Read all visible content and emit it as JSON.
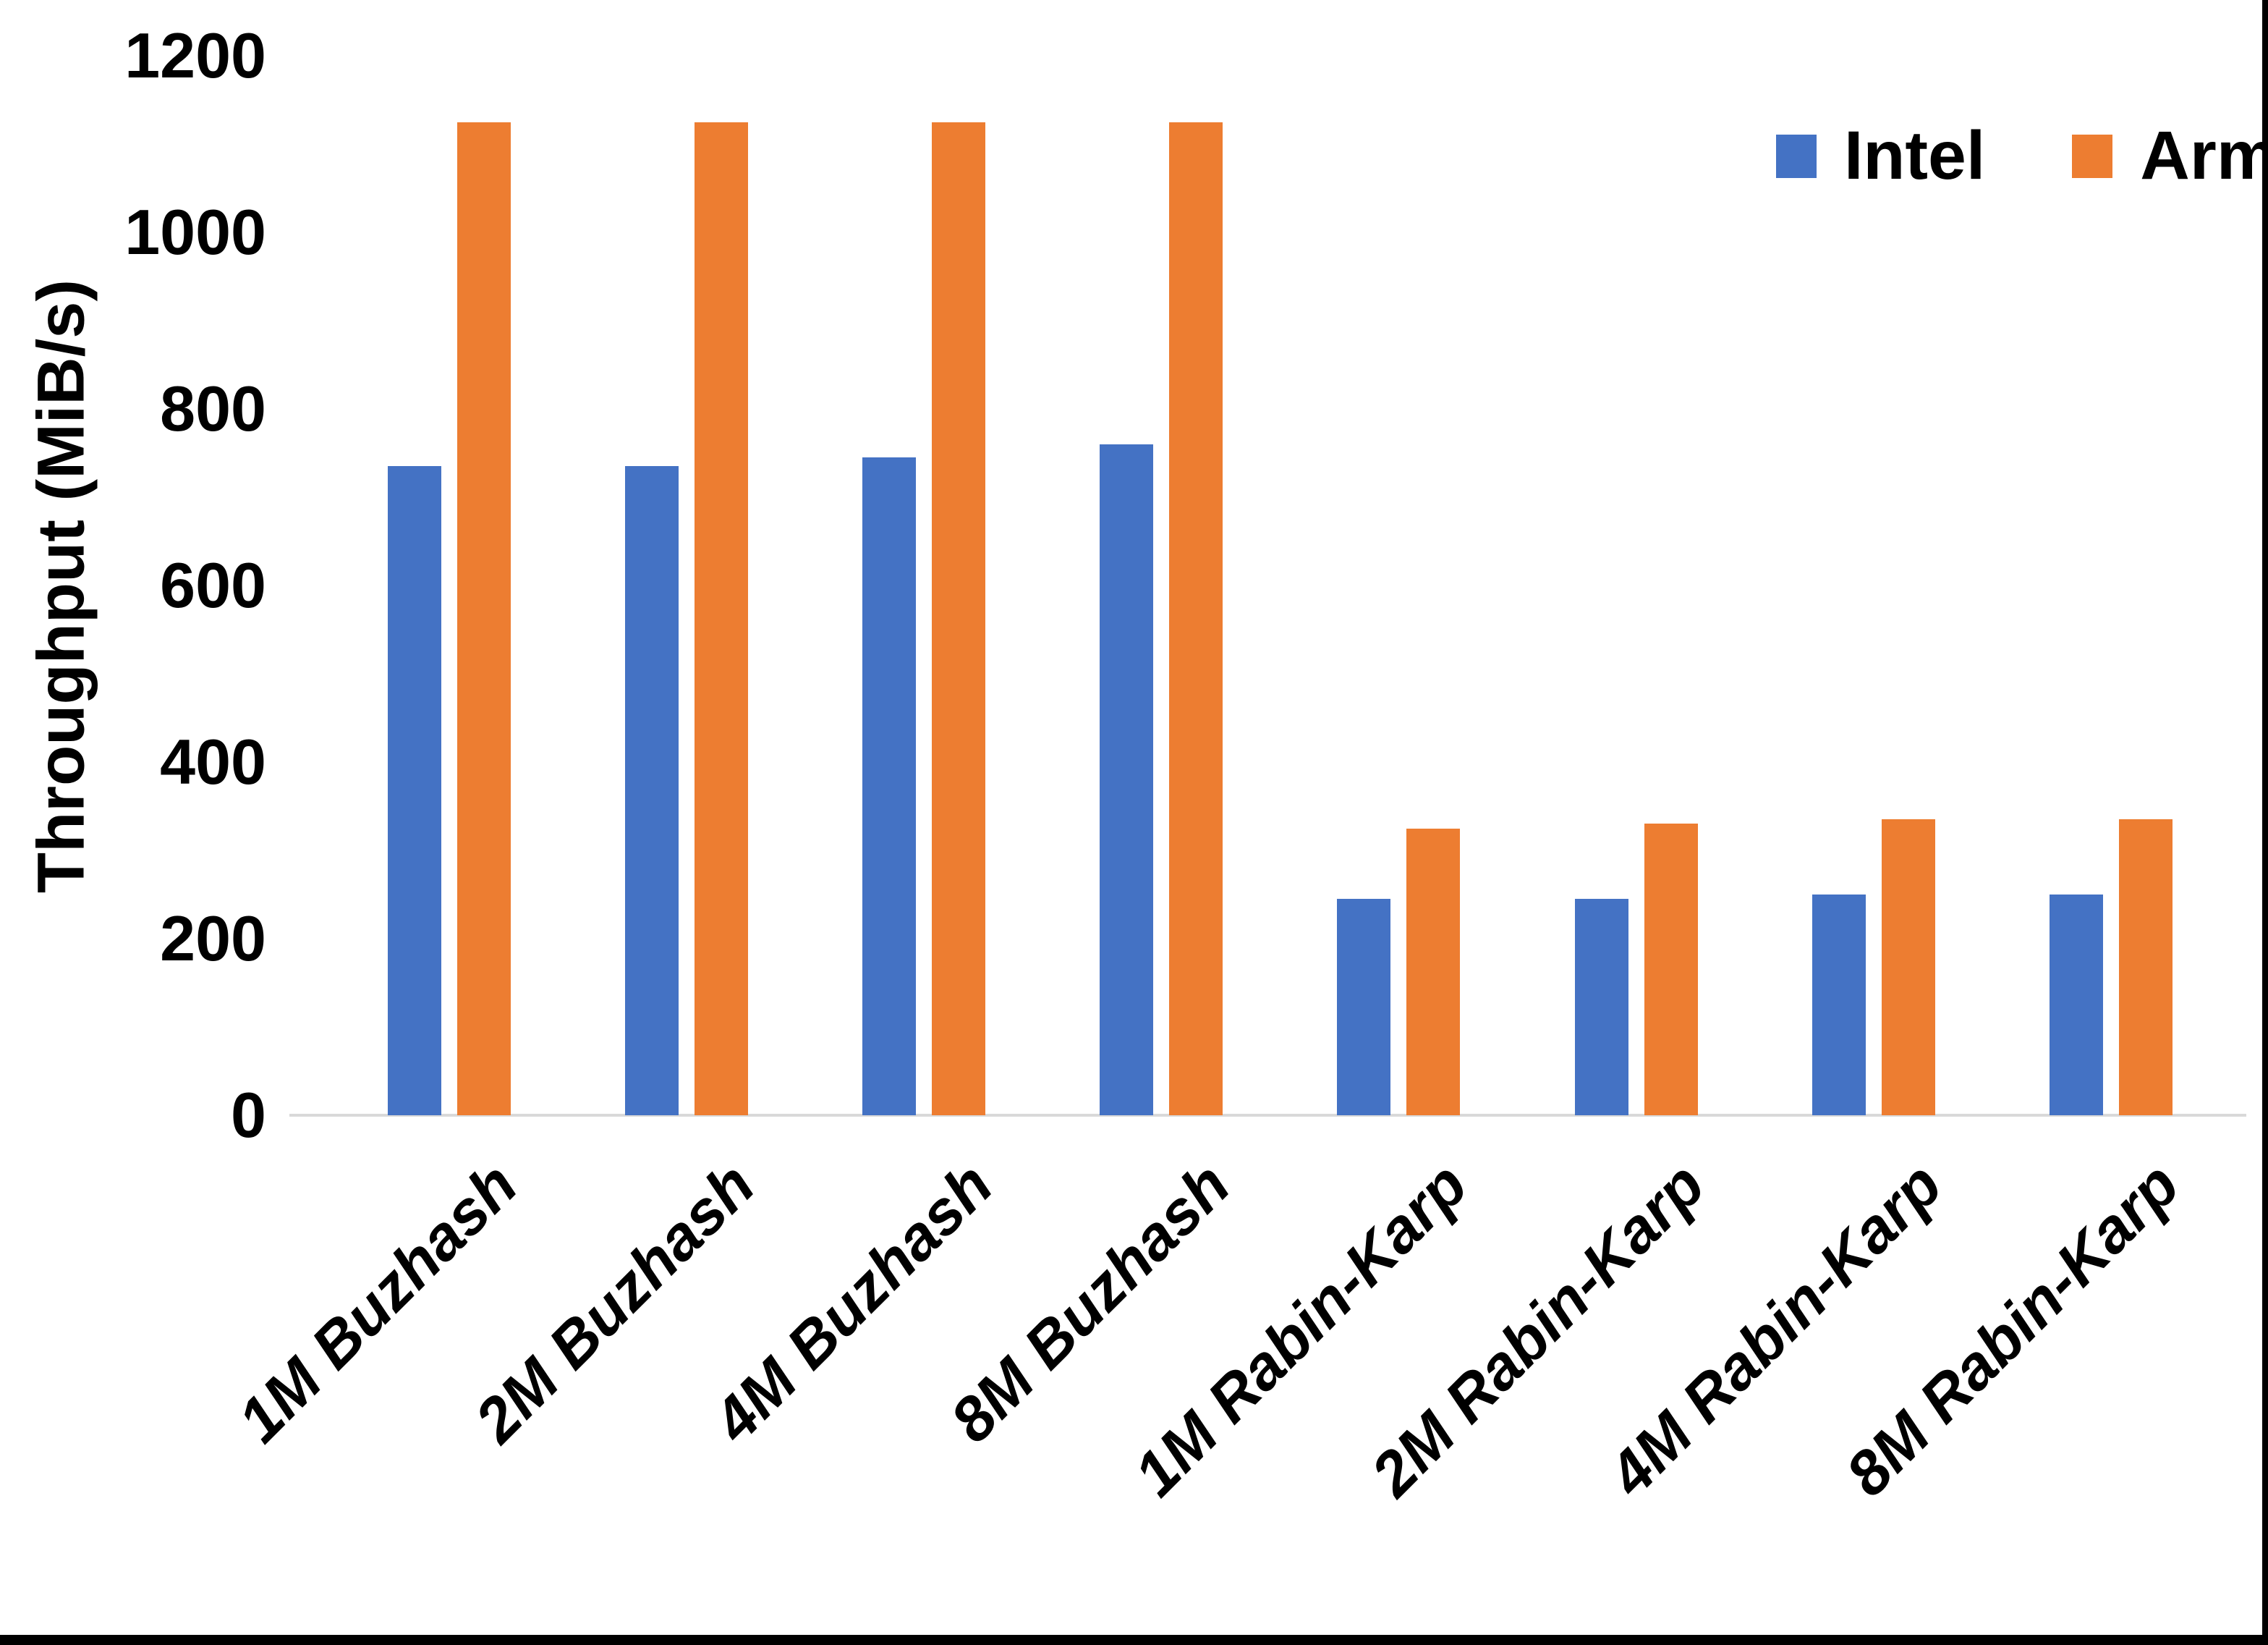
{
  "chart_data": {
    "type": "bar",
    "title": "",
    "xlabel": "",
    "ylabel": "Throughput (MiB/s)",
    "ylim": [
      0,
      1200
    ],
    "yticks": [
      0,
      200,
      400,
      600,
      800,
      1000,
      1200
    ],
    "grid": false,
    "legend_position": "top-right",
    "categories": [
      "1M Buzhash",
      "2M Buzhash",
      "4M Buzhash",
      "8M Buzhash",
      "1M Rabin-Karp",
      "2M Rabin-Karp",
      "4M Rabin-Karp",
      "8M Rabin-Karp"
    ],
    "series": [
      {
        "name": "Intel",
        "color": "#4472C4",
        "values": [
          735,
          735,
          745,
          760,
          245,
          245,
          250,
          250
        ]
      },
      {
        "name": "Arm",
        "color": "#ED7D31",
        "values": [
          1125,
          1125,
          1125,
          1125,
          325,
          330,
          335,
          335
        ]
      }
    ]
  }
}
